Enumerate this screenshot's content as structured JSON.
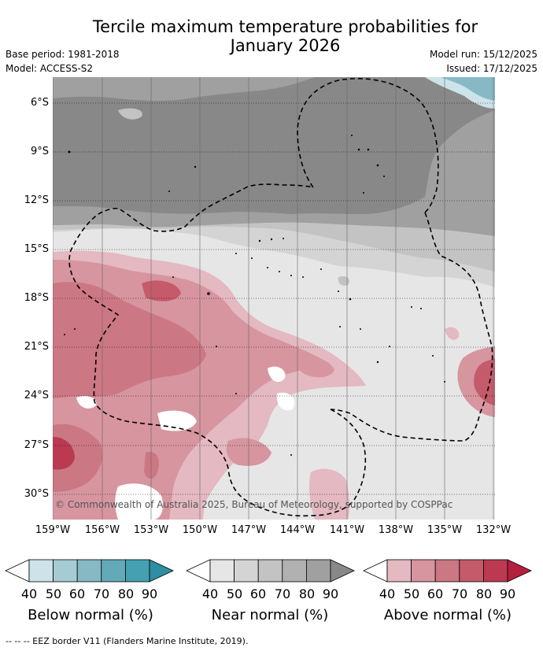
{
  "title_line1": "Tercile maximum temperature probabilities for",
  "title_line2": "January 2026",
  "base_period": "Base period: 1981-2018",
  "model": "Model: ACCESS-S2",
  "model_run": "Model run: 15/12/2025",
  "issued": "Issued: 17/12/2025",
  "lat_labels": [
    "6°S",
    "9°S",
    "12°S",
    "15°S",
    "18°S",
    "21°S",
    "24°S",
    "27°S",
    "30°S"
  ],
  "lon_labels": [
    "159°W",
    "156°W",
    "153°W",
    "150°W",
    "147°W",
    "144°W",
    "141°W",
    "138°W",
    "135°W",
    "132°W"
  ],
  "credit": "© Commonwealth of Australia 2025, Bureau of Meteorology, supported by COSPPac",
  "colorbars": [
    {
      "label": "Below normal (%)",
      "ticks": [
        "40",
        "50",
        "60",
        "70",
        "80",
        "90"
      ],
      "colors": [
        "#ffffff",
        "#cce3e9",
        "#a6cbd3",
        "#86b9c4",
        "#64a9b8",
        "#45a0b1",
        "#2e8ea2"
      ]
    },
    {
      "label": "Near normal (%)",
      "ticks": [
        "40",
        "50",
        "60",
        "70",
        "80",
        "90"
      ],
      "colors": [
        "#ffffff",
        "#e6e6e6",
        "#d4d4d4",
        "#c3c3c3",
        "#b1b1b1",
        "#a0a0a0",
        "#888888"
      ]
    },
    {
      "label": "Above normal (%)",
      "ticks": [
        "40",
        "50",
        "60",
        "70",
        "80",
        "90"
      ],
      "colors": [
        "#ffffff",
        "#e4b9c1",
        "#d6959f",
        "#cc7784",
        "#c55a6a",
        "#bb3a51",
        "#b51f3e"
      ]
    }
  ],
  "footer": "--  --  -- EEZ border V11 (Flanders Marine Institute, 2019)."
}
